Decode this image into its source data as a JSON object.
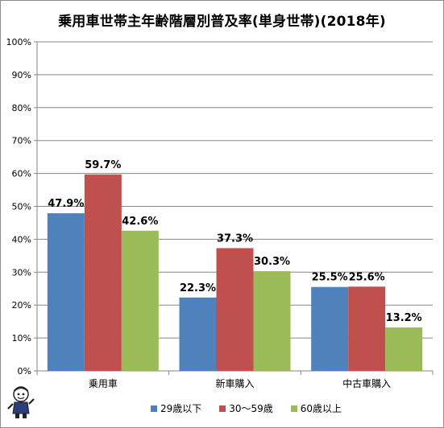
{
  "title": "乗用車世帯主年齢階層別普及率(単身世帯)(2018年)",
  "colors": {
    "series1": "#4f81bd",
    "series2": "#c0504d",
    "series3": "#9bbb59",
    "grid": "#888888",
    "axis": "#868686"
  },
  "chart_data": {
    "type": "bar",
    "title": "乗用車世帯主年齢階層別普及率(単身世帯)(2018年)",
    "categories": [
      "乗用車",
      "新車購入",
      "中古車購入"
    ],
    "series": [
      {
        "name": "29歳以下",
        "values": [
          47.9,
          22.3,
          25.5
        ],
        "labels": [
          "47.9%",
          "22.3%",
          "25.5%"
        ]
      },
      {
        "name": "30〜59歳",
        "values": [
          59.7,
          37.3,
          25.6
        ],
        "labels": [
          "59.7%",
          "37.3%",
          "25.6%"
        ]
      },
      {
        "name": "60歳以上",
        "values": [
          42.6,
          30.3,
          13.2
        ],
        "labels": [
          "42.6%",
          "30.3%",
          "13.2%"
        ]
      }
    ],
    "ylim": [
      0,
      100
    ],
    "yticks": [
      "0%",
      "10%",
      "20%",
      "30%",
      "40%",
      "50%",
      "60%",
      "70%",
      "80%",
      "90%",
      "100%"
    ],
    "grid": true,
    "legend_position": "bottom"
  }
}
